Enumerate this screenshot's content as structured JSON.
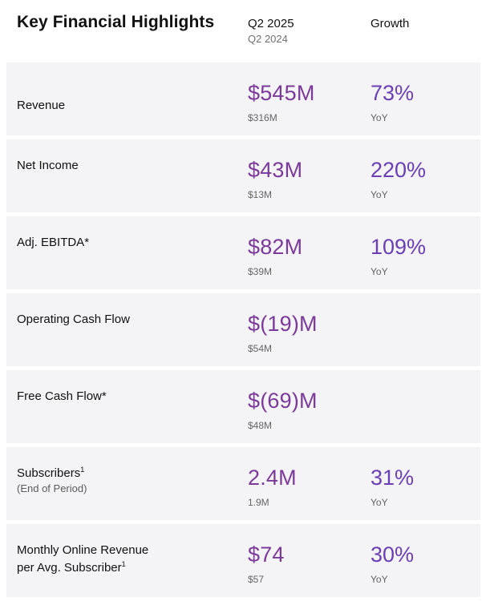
{
  "header": {
    "title": "Key Financial Highlights",
    "period_current": "Q2 2025",
    "period_prior": "Q2 2024",
    "growth_header": "Growth"
  },
  "colors": {
    "value_accent": "#7b3a9a",
    "growth_accent": "#6a3fb4",
    "row_background": "#f4f3f5"
  },
  "rows": [
    {
      "label": "Revenue",
      "value": "$545M",
      "prior": "$316M",
      "growth": "73%",
      "growth_sub": "YoY"
    },
    {
      "label": "Net Income",
      "value": "$43M",
      "prior": "$13M",
      "growth": "220%",
      "growth_sub": "YoY"
    },
    {
      "label": "Adj. EBITDA*",
      "value": "$82M",
      "prior": "$39M",
      "growth": "109%",
      "growth_sub": "YoY"
    },
    {
      "label": "Operating Cash Flow",
      "value": "$(19)M",
      "prior": "$54M"
    },
    {
      "label": "Free Cash Flow*",
      "value": "$(69)M",
      "prior": "$48M"
    },
    {
      "label": "Subscribers",
      "footnote": "1",
      "sublabel": "(End of Period)",
      "value": "2.4M",
      "prior": "1.9M",
      "growth": "31%",
      "growth_sub": "YoY"
    },
    {
      "label": "Monthly Online Revenue",
      "label_line2": "per Avg. Subscriber",
      "footnote": "1",
      "value": "$74",
      "prior": "$57",
      "growth": "30%",
      "growth_sub": "YoY"
    }
  ]
}
